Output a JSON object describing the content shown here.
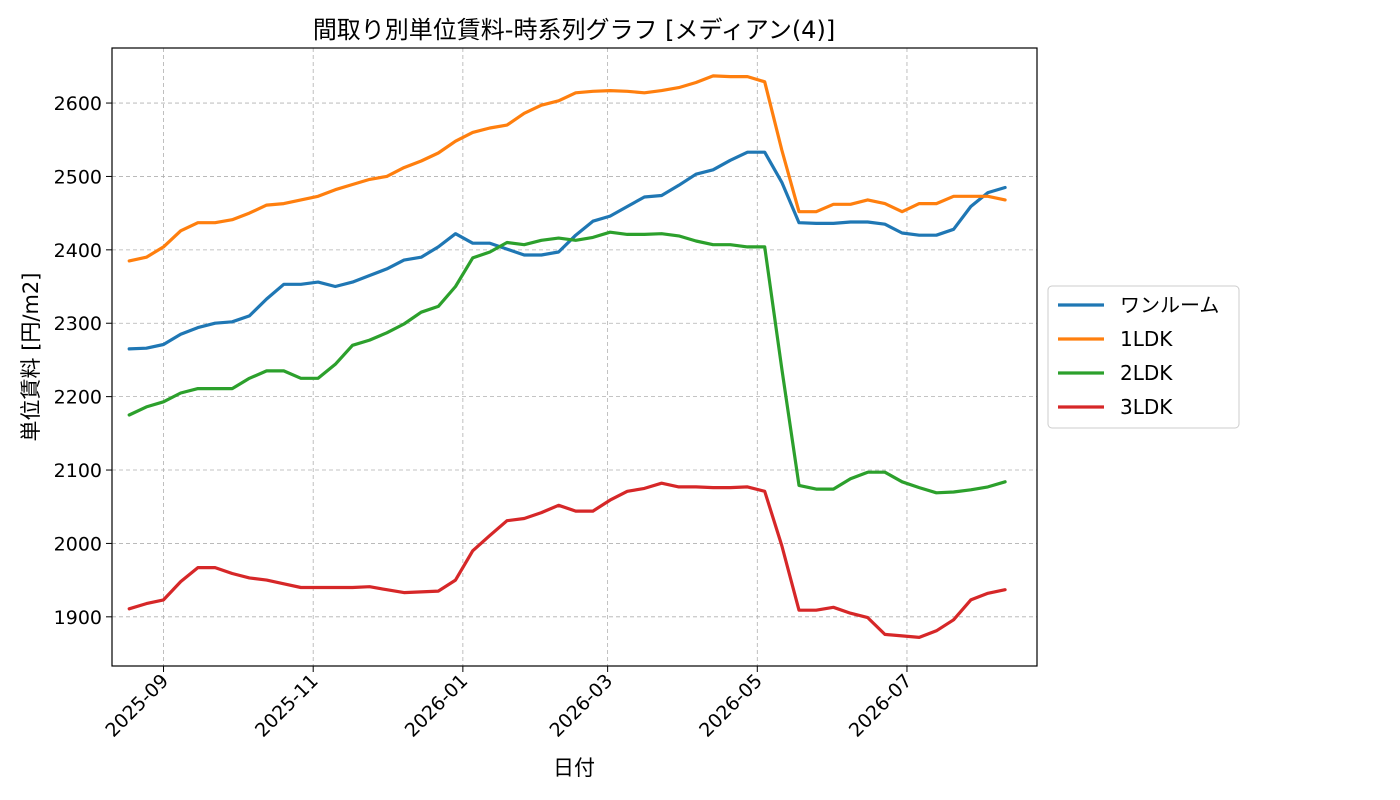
{
  "chart_data": {
    "type": "line",
    "title": "間取り別単位賃料-時系列グラフ [メディアン(4)]",
    "xlabel": "日付",
    "ylabel": "単位賃料 [円/m2]",
    "xlim": [
      "2025-08-11",
      "2026-08-23"
    ],
    "ylim": [
      1833,
      2675
    ],
    "yticks": [
      1900,
      2000,
      2100,
      2200,
      2300,
      2400,
      2500,
      2600
    ],
    "xticks": [
      "2025-09-01",
      "2025-11-01",
      "2026-01-01",
      "2026-03-01",
      "2026-05-01",
      "2026-07-01"
    ],
    "xtick_labels": [
      "2025-09",
      "2025-11",
      "2026-01",
      "2026-03",
      "2026-05",
      "2026-07"
    ],
    "grid": true,
    "legend_position": "center-right-outside",
    "x": [
      "2025-08-18",
      "2025-08-25",
      "2025-09-01",
      "2025-09-08",
      "2025-09-15",
      "2025-09-22",
      "2025-09-29",
      "2025-10-06",
      "2025-10-13",
      "2025-10-20",
      "2025-10-27",
      "2025-11-03",
      "2025-11-10",
      "2025-11-17",
      "2025-11-24",
      "2025-12-01",
      "2025-12-08",
      "2025-12-15",
      "2025-12-22",
      "2025-12-29",
      "2026-01-05",
      "2026-01-12",
      "2026-01-19",
      "2026-01-26",
      "2026-02-02",
      "2026-02-09",
      "2026-02-16",
      "2026-02-23",
      "2026-03-02",
      "2026-03-09",
      "2026-03-16",
      "2026-03-23",
      "2026-03-30",
      "2026-04-06",
      "2026-04-13",
      "2026-04-20",
      "2026-04-27",
      "2026-05-04",
      "2026-05-11",
      "2026-05-18",
      "2026-05-25",
      "2026-06-01",
      "2026-06-08",
      "2026-06-15",
      "2026-06-22",
      "2026-06-29",
      "2026-07-06",
      "2026-07-13",
      "2026-07-20",
      "2026-07-27",
      "2026-08-03",
      "2026-08-10"
    ],
    "series": [
      {
        "name": "ワンルーム",
        "color": "#1f77b4",
        "values": [
          2265,
          2266,
          2271,
          2285,
          2294,
          2300,
          2302,
          2310,
          2333,
          2353,
          2353,
          2356,
          2350,
          2356,
          2365,
          2374,
          2386,
          2390,
          2404,
          2422,
          2409,
          2409,
          2401,
          2393,
          2393,
          2397,
          2420,
          2439,
          2446,
          2459,
          2472,
          2474,
          2488,
          2503,
          2509,
          2522,
          2533,
          2533,
          2492,
          2437,
          2436,
          2436,
          2438,
          2438,
          2435,
          2423,
          2420,
          2420,
          2428,
          2459,
          2478,
          2485
        ]
      },
      {
        "name": "1LDK",
        "color": "#ff7f0e",
        "values": [
          2385,
          2390,
          2404,
          2426,
          2437,
          2437,
          2441,
          2450,
          2461,
          2463,
          2468,
          2473,
          2482,
          2489,
          2496,
          2500,
          2512,
          2521,
          2532,
          2548,
          2560,
          2566,
          2570,
          2586,
          2597,
          2603,
          2614,
          2616,
          2617,
          2616,
          2614,
          2617,
          2621,
          2628,
          2637,
          2636,
          2636,
          2629,
          2536,
          2452,
          2452,
          2462,
          2462,
          2468,
          2463,
          2452,
          2463,
          2463,
          2473,
          2473,
          2473,
          2468
        ]
      },
      {
        "name": "2LDK",
        "color": "#2ca02c",
        "values": [
          2175,
          2186,
          2193,
          2205,
          2211,
          2211,
          2211,
          2225,
          2235,
          2235,
          2225,
          2225,
          2244,
          2270,
          2277,
          2287,
          2299,
          2315,
          2323,
          2350,
          2389,
          2397,
          2410,
          2407,
          2413,
          2416,
          2413,
          2417,
          2424,
          2421,
          2421,
          2422,
          2419,
          2412,
          2407,
          2407,
          2404,
          2404,
          2238,
          2079,
          2074,
          2074,
          2088,
          2097,
          2097,
          2084,
          2076,
          2069,
          2070,
          2073,
          2077,
          2084
        ]
      },
      {
        "name": "3LDK",
        "color": "#d62728",
        "values": [
          1911,
          1918,
          1923,
          1948,
          1967,
          1967,
          1959,
          1953,
          1950,
          1945,
          1940,
          1940,
          1940,
          1940,
          1941,
          1937,
          1933,
          1934,
          1935,
          1950,
          1990,
          2011,
          2031,
          2034,
          2042,
          2052,
          2044,
          2044,
          2059,
          2071,
          2075,
          2082,
          2077,
          2077,
          2076,
          2076,
          2077,
          2071,
          1997,
          1909,
          1909,
          1913,
          1905,
          1899,
          1876,
          1874,
          1872,
          1881,
          1896,
          1923,
          1932,
          1937
        ]
      }
    ]
  }
}
